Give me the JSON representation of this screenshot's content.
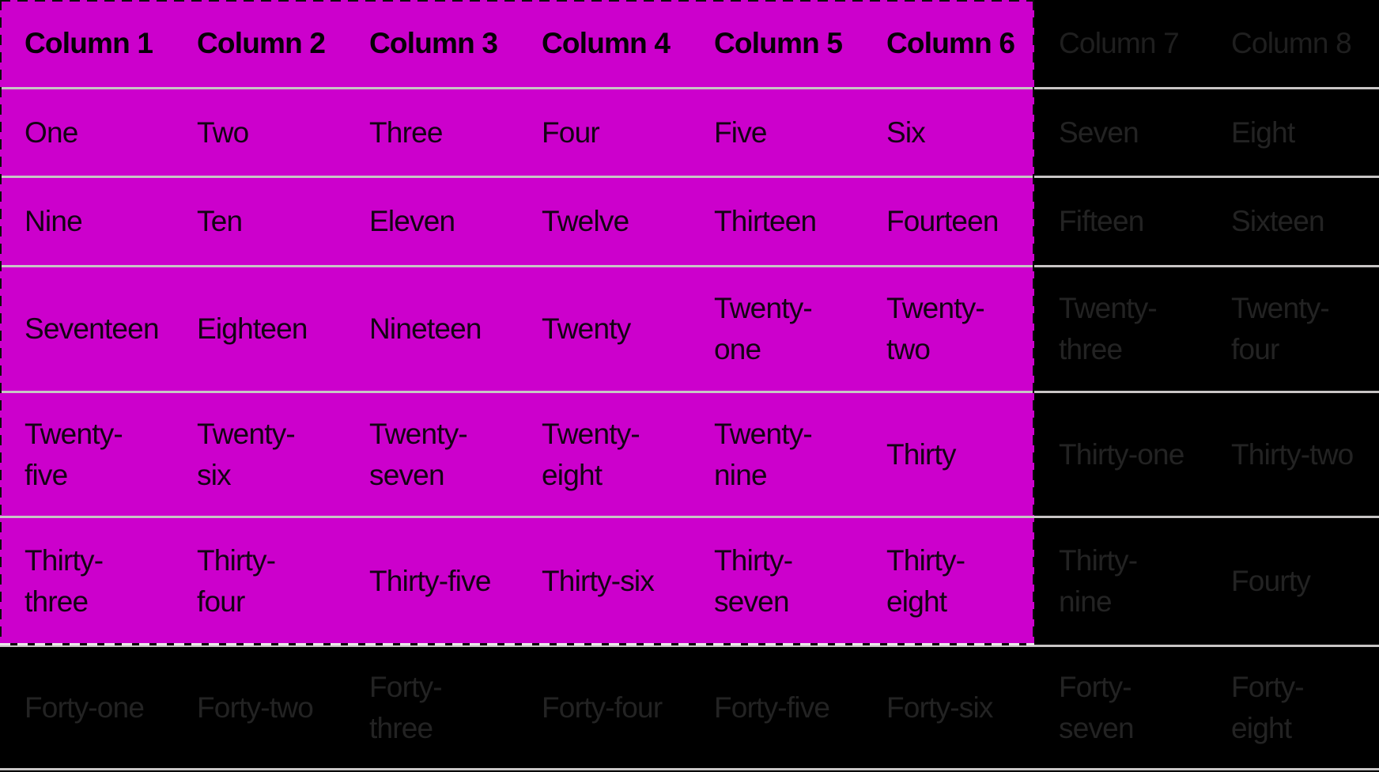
{
  "colors": {
    "selection_highlight": "#CC00CC",
    "divider": "#C8C5C5",
    "dim_background": "#000000",
    "dim_text": "#232323",
    "selected_text": "#140314",
    "ant_light": "#E9E9E9",
    "ant_dark": "#0C0C0C"
  },
  "selection": {
    "columns_selected": 6,
    "rows_selected": 6
  },
  "table": {
    "columns": [
      "Column 1",
      "Column 2",
      "Column 3",
      "Column 4",
      "Column 5",
      "Column 6",
      "Column 7",
      "Column 8"
    ],
    "rows": [
      [
        [
          "One"
        ],
        [
          "Two"
        ],
        [
          "Three"
        ],
        [
          "Four"
        ],
        [
          "Five"
        ],
        [
          "Six"
        ],
        [
          "Seven"
        ],
        [
          "Eight"
        ]
      ],
      [
        [
          "Nine"
        ],
        [
          "Ten"
        ],
        [
          "Eleven"
        ],
        [
          "Twelve"
        ],
        [
          "Thirteen"
        ],
        [
          "Fourteen"
        ],
        [
          "Fifteen"
        ],
        [
          "Sixteen"
        ]
      ],
      [
        [
          "Seventeen"
        ],
        [
          "Eighteen"
        ],
        [
          "Nineteen"
        ],
        [
          "Twenty"
        ],
        [
          "Twenty-",
          "one"
        ],
        [
          "Twenty-",
          "two"
        ],
        [
          "Twenty-",
          "three"
        ],
        [
          "Twenty-",
          "four"
        ]
      ],
      [
        [
          "Twenty-",
          "five"
        ],
        [
          "Twenty-",
          "six"
        ],
        [
          "Twenty-",
          "seven"
        ],
        [
          "Twenty-",
          "eight"
        ],
        [
          "Twenty-",
          "nine"
        ],
        [
          "Thirty"
        ],
        [
          "Thirty-one"
        ],
        [
          "Thirty-two"
        ]
      ],
      [
        [
          "Thirty-",
          "three"
        ],
        [
          "Thirty-",
          "four"
        ],
        [
          "Thirty-five"
        ],
        [
          "Thirty-six"
        ],
        [
          "Thirty-",
          "seven"
        ],
        [
          "Thirty-",
          "eight"
        ],
        [
          "Thirty-",
          "nine"
        ],
        [
          "Fourty"
        ]
      ],
      [
        [
          "Forty-one"
        ],
        [
          "Forty-two"
        ],
        [
          "Forty-",
          "three"
        ],
        [
          "Forty-four"
        ],
        [
          "Forty-five"
        ],
        [
          "Forty-six"
        ],
        [
          "Forty-",
          "seven"
        ],
        [
          "Forty-",
          "eight"
        ]
      ]
    ]
  }
}
